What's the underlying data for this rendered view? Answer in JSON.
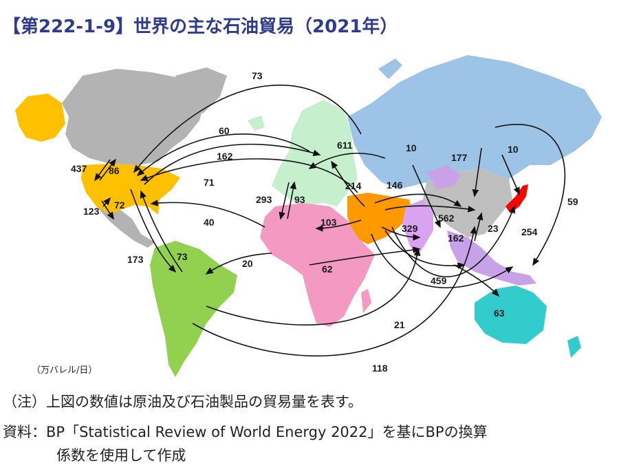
{
  "title": "【第222-1-9】世界の主な石油貿易（2021年）",
  "unit_label": "（万バレル/日）",
  "notes": {
    "note": "（注）上図の数値は原油及び石油製品の貿易量を表す。",
    "source_line1": "資料：BP「Statistical Review of World Energy 2022」を基にBPの換算",
    "source_line2": "係数を使用して作成"
  },
  "flow_values": [
    "73",
    "60",
    "162",
    "71",
    "40",
    "437",
    "86",
    "123",
    "72",
    "173",
    "73",
    "20",
    "293",
    "93",
    "611",
    "10",
    "177",
    "10",
    "214",
    "146",
    "103",
    "562",
    "329",
    "23",
    "162",
    "254",
    "59",
    "62",
    "459",
    "63",
    "21",
    "118"
  ],
  "colors": {
    "north_america_other": "#b3b3b3",
    "usa_canada": "#ffc000",
    "central_south_america": "#92d050",
    "europe": "#c6efce",
    "russia_cis": "#9dc3e6",
    "middle_east": "#ff9900",
    "africa": "#f49ac2",
    "india": "#d9a3f0",
    "china_asia": "#bfbfbf",
    "southeast_asia": "#c8a2e8",
    "japan": "#ff0000",
    "oceania": "#33cccc",
    "title": "#2e3b8f"
  }
}
